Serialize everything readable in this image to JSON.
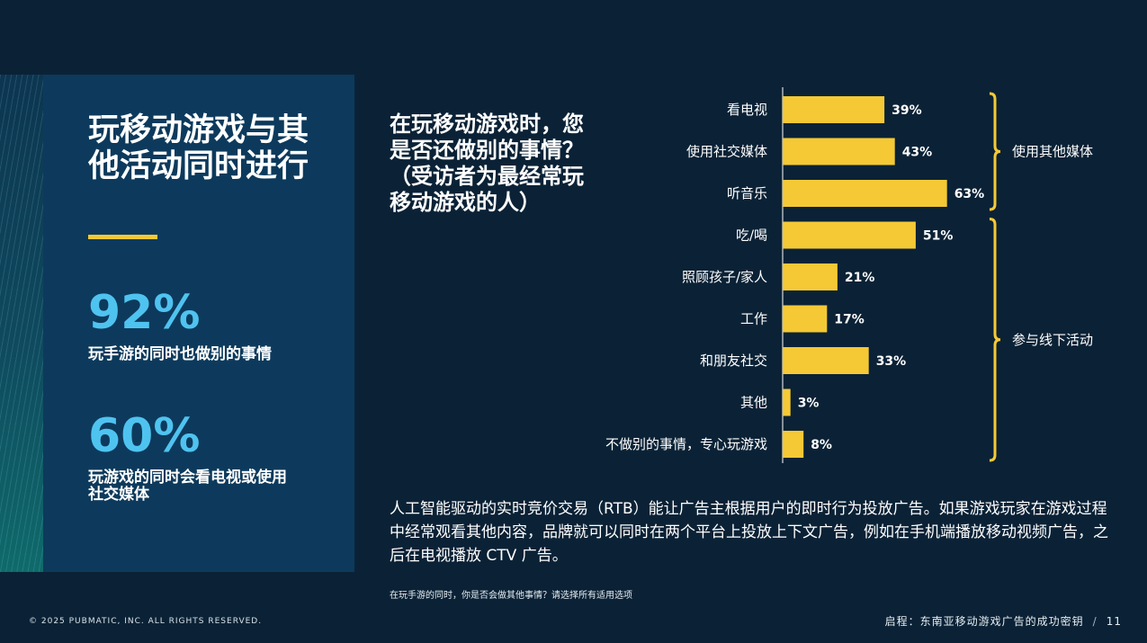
{
  "panel": {
    "title": "玩移动游戏与其他活动同时进行",
    "stats": [
      {
        "value": "92%",
        "label": "玩手游的同时也做别的事情"
      },
      {
        "value": "60%",
        "label": "玩游戏的同时会看电视或使用社交媒体"
      }
    ]
  },
  "question": "在玩移动游戏时，您是否还做别的事情？（受访者为最经常玩移动游戏的人）",
  "chart_data": {
    "type": "bar",
    "orientation": "horizontal",
    "categories": [
      "看电视",
      "使用社交媒体",
      "听音乐",
      "吃/喝",
      "照顾孩子/家人",
      "工作",
      "和朋友社交",
      "其他",
      "不做别的事情，专心玩游戏"
    ],
    "values": [
      39,
      43,
      63,
      51,
      21,
      17,
      33,
      3,
      8
    ],
    "data_labels": [
      "39%",
      "43%",
      "63%",
      "51%",
      "21%",
      "17%",
      "33%",
      "3%",
      "8%"
    ],
    "bar_color": "#f5c935",
    "groups": [
      {
        "label": "使用其他媒体",
        "from": 0,
        "to": 2
      },
      {
        "label": "参与线下活动",
        "from": 3,
        "to": 8
      }
    ]
  },
  "body_text": "人工智能驱动的实时竞价交易（RTB）能让广告主根据用户的即时行为投放广告。如果游戏玩家在游戏过程中经常观看其他内容，品牌就可以同时在两个平台上投放上下文广告，例如在手机端播放移动视频广告，之后在电视播放 CTV 广告。",
  "footnote": "在玩手游的同时，你是否会做其他事情？请选择所有适用选项",
  "footer": {
    "copyright": "© 2025 PUBMATIC, INC. ALL RIGHTS RESERVED.",
    "guide": "启程：东南亚移动游戏广告的成功密钥",
    "separator": "/",
    "page_number": "11"
  }
}
